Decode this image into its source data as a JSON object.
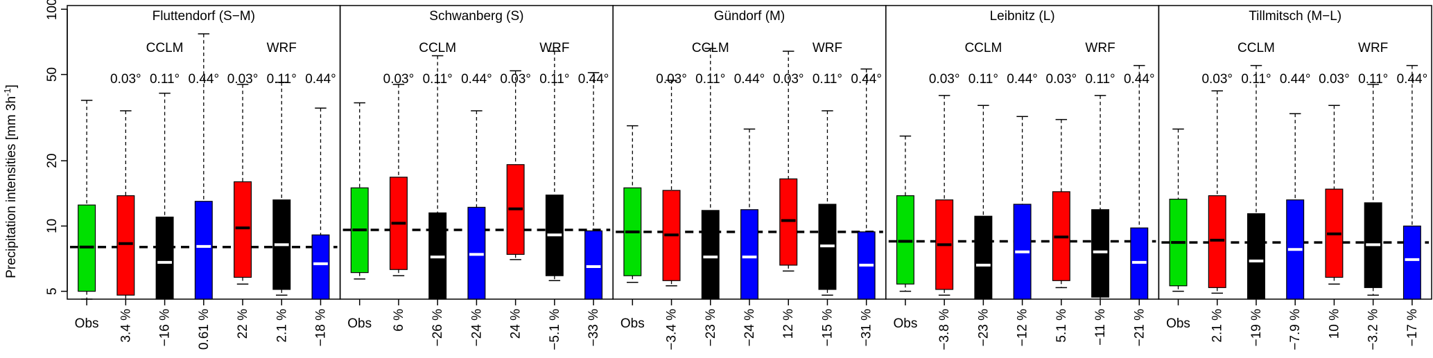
{
  "chart_data": {
    "type": "boxplot",
    "ylabel": "Precipitation intensities [mm 3h",
    "ylabel_sup": "-1",
    "ylabel_close": "]",
    "y_scale": "log",
    "ylim": [
      4.6,
      104
    ],
    "y_ticks": [
      5,
      10,
      20,
      50,
      100
    ],
    "model_groups": [
      "CCLM",
      "WRF"
    ],
    "categories": [
      "Obs",
      "CCLM 0.03°",
      "CCLM 0.11°",
      "CCLM 0.44°",
      "WRF 0.03°",
      "WRF 0.11°",
      "WRF 0.44°"
    ],
    "resolution_labels": [
      "0.03°",
      "0.11°",
      "0.44°",
      "0.03°",
      "0.11°",
      "0.44°"
    ],
    "colors": [
      "#00e000",
      "#ff0000",
      "#000000",
      "#0000ff",
      "#ff0000",
      "#000000",
      "#0000ff"
    ],
    "median_colors": [
      "#000000",
      "#000000",
      "#ffffff",
      "#ffffff",
      "#000000",
      "#ffffff",
      "#ffffff"
    ],
    "panels": [
      {
        "title": "Fluttendorf (S−M)",
        "obs_median": 8.0,
        "bias_labels": [
          "Obs",
          "3.4 %",
          "−16 %",
          "0.61 %",
          "22 %",
          "2.1 %",
          "−18 %"
        ],
        "boxes": [
          {
            "whisker_low": 4.6,
            "q1": 5.0,
            "median": 8.0,
            "q3": 12.5,
            "whisker_high": 38
          },
          {
            "whisker_low": 4.55,
            "q1": 4.8,
            "median": 8.3,
            "q3": 13.8,
            "whisker_high": 34
          },
          {
            "whisker_low": 4.5,
            "q1": 4.5,
            "median": 6.8,
            "q3": 11.0,
            "whisker_high": 41
          },
          {
            "whisker_low": 4.5,
            "q1": 4.5,
            "median": 8.05,
            "q3": 13.0,
            "whisker_high": 77
          },
          {
            "whisker_low": 5.4,
            "q1": 5.8,
            "median": 9.8,
            "q3": 16.0,
            "whisker_high": 45
          },
          {
            "whisker_low": 4.8,
            "q1": 5.1,
            "median": 8.2,
            "q3": 13.2,
            "whisker_high": 46
          },
          {
            "whisker_low": 4.5,
            "q1": 4.5,
            "median": 6.7,
            "q3": 9.1,
            "whisker_high": 35
          }
        ]
      },
      {
        "title": "Schwanberg (S)",
        "obs_median": 9.6,
        "bias_labels": [
          "Obs",
          "6 %",
          "−26 %",
          "−24 %",
          "24 %",
          "−5.1 %",
          "−33 %"
        ],
        "boxes": [
          {
            "whisker_low": 5.7,
            "q1": 6.1,
            "median": 9.6,
            "q3": 15.0,
            "whisker_high": 37
          },
          {
            "whisker_low": 5.9,
            "q1": 6.3,
            "median": 10.3,
            "q3": 16.8,
            "whisker_high": 45
          },
          {
            "whisker_low": 4.5,
            "q1": 4.5,
            "median": 7.2,
            "q3": 11.5,
            "whisker_high": 61
          },
          {
            "whisker_low": 4.5,
            "q1": 4.5,
            "median": 7.4,
            "q3": 12.2,
            "whisker_high": 34
          },
          {
            "whisker_low": 7.0,
            "q1": 7.4,
            "median": 12.0,
            "q3": 19.2,
            "whisker_high": 52
          },
          {
            "whisker_low": 5.6,
            "q1": 5.9,
            "median": 9.1,
            "q3": 13.9,
            "whisker_high": 64
          },
          {
            "whisker_low": 4.5,
            "q1": 4.5,
            "median": 6.5,
            "q3": 9.5,
            "whisker_high": 51
          }
        ]
      },
      {
        "title": "Gündorf (M)",
        "obs_median": 9.4,
        "bias_labels": [
          "Obs",
          "−3.4 %",
          "−23 %",
          "−24 %",
          "12 %",
          "−15 %",
          "−31 %"
        ],
        "boxes": [
          {
            "whisker_low": 5.5,
            "q1": 5.9,
            "median": 9.4,
            "q3": 15.0,
            "whisker_high": 29
          },
          {
            "whisker_low": 5.3,
            "q1": 5.6,
            "median": 9.1,
            "q3": 14.6,
            "whisker_high": 47
          },
          {
            "whisker_low": 4.5,
            "q1": 4.5,
            "median": 7.2,
            "q3": 11.8,
            "whisker_high": 66
          },
          {
            "whisker_low": 4.5,
            "q1": 4.5,
            "median": 7.2,
            "q3": 11.9,
            "whisker_high": 28
          },
          {
            "whisker_low": 6.2,
            "q1": 6.6,
            "median": 10.6,
            "q3": 16.5,
            "whisker_high": 64
          },
          {
            "whisker_low": 4.8,
            "q1": 5.1,
            "median": 8.1,
            "q3": 12.6,
            "whisker_high": 34
          },
          {
            "whisker_low": 4.5,
            "q1": 4.5,
            "median": 6.6,
            "q3": 9.4,
            "whisker_high": 53
          }
        ]
      },
      {
        "title": "Leibnitz (L)",
        "obs_median": 8.5,
        "bias_labels": [
          "Obs",
          "−3.8 %",
          "−23 %",
          "−12 %",
          "5.1 %",
          "−11 %",
          "−21 %"
        ],
        "boxes": [
          {
            "whisker_low": 5.0,
            "q1": 5.4,
            "median": 8.5,
            "q3": 13.8,
            "whisker_high": 26
          },
          {
            "whisker_low": 4.8,
            "q1": 5.1,
            "median": 8.2,
            "q3": 13.2,
            "whisker_high": 40
          },
          {
            "whisker_low": 4.5,
            "q1": 4.5,
            "median": 6.6,
            "q3": 11.1,
            "whisker_high": 36
          },
          {
            "whisker_low": 4.5,
            "q1": 4.5,
            "median": 7.6,
            "q3": 12.6,
            "whisker_high": 32
          },
          {
            "whisker_low": 5.2,
            "q1": 5.6,
            "median": 8.9,
            "q3": 14.4,
            "whisker_high": 31
          },
          {
            "whisker_low": 4.4,
            "q1": 4.7,
            "median": 7.6,
            "q3": 11.9,
            "whisker_high": 40
          },
          {
            "whisker_low": 4.5,
            "q1": 4.5,
            "median": 6.8,
            "q3": 9.8,
            "whisker_high": 55
          }
        ]
      },
      {
        "title": "Tillmitsch (M−L)",
        "obs_median": 8.4,
        "bias_labels": [
          "Obs",
          "2.1 %",
          "−19 %",
          "−7.9 %",
          "10 %",
          "−3.2 %",
          "−17 %"
        ],
        "boxes": [
          {
            "whisker_low": 5.0,
            "q1": 5.3,
            "median": 8.4,
            "q3": 13.3,
            "whisker_high": 28
          },
          {
            "whisker_low": 4.9,
            "q1": 5.2,
            "median": 8.6,
            "q3": 13.8,
            "whisker_high": 42
          },
          {
            "whisker_low": 4.5,
            "q1": 4.5,
            "median": 6.9,
            "q3": 11.4,
            "whisker_high": 55
          },
          {
            "whisker_low": 4.5,
            "q1": 4.5,
            "median": 7.8,
            "q3": 13.2,
            "whisker_high": 33
          },
          {
            "whisker_low": 5.4,
            "q1": 5.8,
            "median": 9.2,
            "q3": 14.8,
            "whisker_high": 36
          },
          {
            "whisker_low": 4.8,
            "q1": 5.2,
            "median": 8.2,
            "q3": 12.8,
            "whisker_high": 45
          },
          {
            "whisker_low": 4.5,
            "q1": 4.5,
            "median": 7.0,
            "q3": 10.0,
            "whisker_high": 55
          }
        ]
      }
    ]
  }
}
